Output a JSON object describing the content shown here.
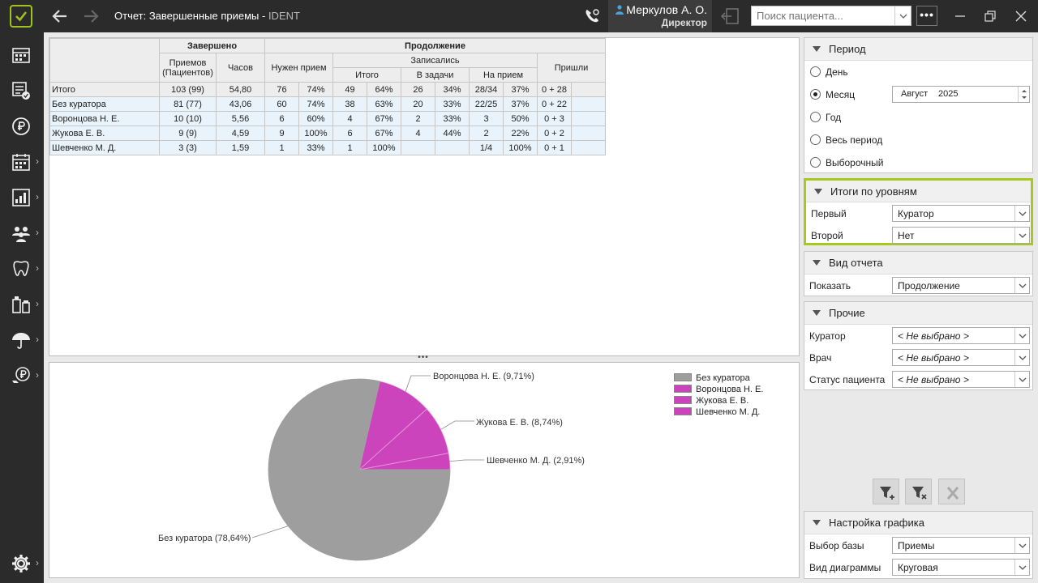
{
  "header": {
    "title": "Отчет: Завершенные приемы",
    "title_sep": " - ",
    "app_name": "IDENT",
    "user_name": "Меркулов А. О.",
    "user_role": "Директор",
    "search_placeholder": "Поиск пациента...",
    "more_label": "•••"
  },
  "sidebar": {
    "icons": [
      "schedule-icon",
      "tasks-icon",
      "finance-icon",
      "calendar-icon",
      "reports-icon",
      "patients-icon",
      "dental-icon",
      "pharmacy-icon",
      "insurance-icon",
      "payments-icon",
      "settings-icon"
    ]
  },
  "table": {
    "group_headers": {
      "done": "Завершено",
      "continuation": "Продолжение",
      "signed_up": "Записались",
      "came": "Пришли"
    },
    "col_headers": {
      "appointments": "Приемов\n(Пациентов)",
      "hours": "Часов",
      "need_appointment": "Нужен прием",
      "total": "Итого",
      "in_tasks": "В задачи",
      "to_appointment": "На прием"
    },
    "rows": [
      {
        "label": "Итого",
        "appts": "103 (99)",
        "hours": "54,80",
        "need_n": "76",
        "need_p": "74%",
        "tot_n": "49",
        "tot_p": "64%",
        "task_n": "26",
        "task_p": "34%",
        "appt_n": "28/34",
        "appt_p": "37%",
        "came": "0 + 28"
      },
      {
        "label": "Без куратора",
        "appts": "81 (77)",
        "hours": "43,06",
        "need_n": "60",
        "need_p": "74%",
        "tot_n": "38",
        "tot_p": "63%",
        "task_n": "20",
        "task_p": "33%",
        "appt_n": "22/25",
        "appt_p": "37%",
        "came": "0 + 22"
      },
      {
        "label": "Воронцова Н. Е.",
        "appts": "10 (10)",
        "hours": "5,56",
        "need_n": "6",
        "need_p": "60%",
        "tot_n": "4",
        "tot_p": "67%",
        "task_n": "2",
        "task_p": "33%",
        "appt_n": "3",
        "appt_p": "50%",
        "came": "0 + 3"
      },
      {
        "label": "Жукова Е. В.",
        "appts": "9 (9)",
        "hours": "4,59",
        "need_n": "9",
        "need_p": "100%",
        "tot_n": "6",
        "tot_p": "67%",
        "task_n": "4",
        "task_p": "44%",
        "appt_n": "2",
        "appt_p": "22%",
        "came": "0 + 2"
      },
      {
        "label": "Шевченко М. Д.",
        "appts": "3 (3)",
        "hours": "1,59",
        "need_n": "1",
        "need_p": "33%",
        "tot_n": "1",
        "tot_p": "100%",
        "task_n": "",
        "task_p": "",
        "appt_n": "1/4",
        "appt_p": "100%",
        "came": "0 + 1"
      }
    ]
  },
  "chart_data": {
    "type": "pie",
    "categories": [
      "Без куратора",
      "Воронцова Н. Е.",
      "Жукова Е. В.",
      "Шевченко М. Д."
    ],
    "values": [
      78.64,
      9.71,
      8.74,
      2.91
    ],
    "labels": [
      "Без куратора (78,64%)",
      "Воронцова Н. Е. (9,71%)",
      "Жукова Е. В. (8,74%)",
      "Шевченко М. Д. (2,91%)"
    ],
    "colors": [
      "#9e9e9e",
      "#cc44bb",
      "#cc44bb",
      "#cc44bb"
    ],
    "legend_position": "top-right"
  },
  "period": {
    "title": "Период",
    "options": [
      "День",
      "Месяц",
      "Год",
      "Весь период",
      "Выборочный"
    ],
    "selected": "Месяц",
    "month": "Август",
    "year": "2025"
  },
  "levels": {
    "title": "Итоги по уровням",
    "first_label": "Первый",
    "first_value": "Куратор",
    "second_label": "Второй",
    "second_value": "Нет"
  },
  "view": {
    "title": "Вид отчета",
    "show_label": "Показать",
    "show_value": "Продолжение"
  },
  "other": {
    "title": "Прочие",
    "curator_label": "Куратор",
    "curator_value": "< Не выбрано >",
    "doctor_label": "Врач",
    "doctor_value": "< Не выбрано >",
    "status_label": "Статус пациента",
    "status_value": "< Не выбрано >"
  },
  "chart_settings": {
    "title": "Настройка графика",
    "base_label": "Выбор базы",
    "base_value": "Приемы",
    "type_label": "Вид диаграммы",
    "type_value": "Круговая"
  },
  "colors": {
    "accent": "#a6c81f",
    "pie_gray": "#9e9e9e",
    "pie_magenta": "#cc44bb",
    "sidebar": "#2b2b2b"
  }
}
